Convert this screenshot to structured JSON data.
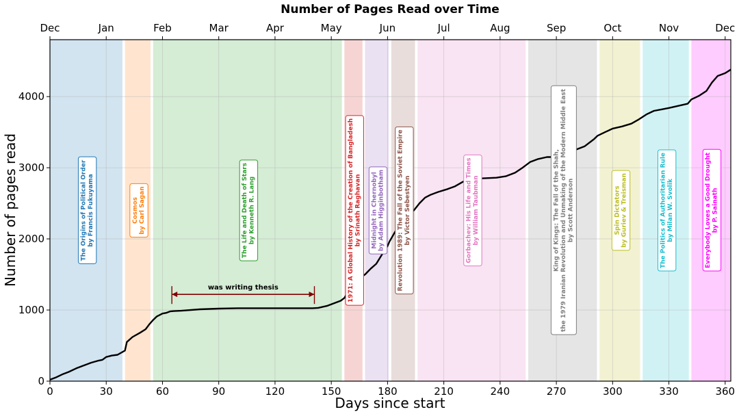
{
  "chart_data": {
    "type": "line",
    "title": "Number of Pages Read over Time",
    "xlabel": "Days since start",
    "ylabel": "Number of pages read",
    "xlim": [
      0,
      363
    ],
    "ylim": [
      0,
      4800
    ],
    "grid": true,
    "x_ticks": [
      0,
      30,
      60,
      90,
      120,
      150,
      180,
      210,
      240,
      270,
      300,
      330,
      360
    ],
    "y_ticks": [
      0,
      1000,
      2000,
      3000,
      4000
    ],
    "month_ticks": [
      {
        "day": 0,
        "label": "Dec"
      },
      {
        "day": 30,
        "label": "Jan"
      },
      {
        "day": 60,
        "label": "Feb"
      },
      {
        "day": 90,
        "label": "Mar"
      },
      {
        "day": 120,
        "label": "Apr"
      },
      {
        "day": 150,
        "label": "May"
      },
      {
        "day": 180,
        "label": "Jun"
      },
      {
        "day": 210,
        "label": "Jul"
      },
      {
        "day": 240,
        "label": "Aug"
      },
      {
        "day": 270,
        "label": "Sep"
      },
      {
        "day": 300,
        "label": "Oct"
      },
      {
        "day": 330,
        "label": "Nov"
      },
      {
        "day": 360,
        "label": "Dec"
      }
    ],
    "books": [
      {
        "start": 0,
        "end": 39,
        "color": "#1f77b4",
        "label": "The Origins of Political Order\nby Francis Fukuyama",
        "label_y": 2400
      },
      {
        "start": 40,
        "end": 54,
        "color": "#ff7f0e",
        "label": "Cosmos\nby Carl Sagan",
        "label_y": 2400
      },
      {
        "start": 55,
        "end": 156,
        "color": "#2ca02c",
        "label": "The Life and Death of Stars\nby Kenneth R. Lang",
        "label_y": 2400
      },
      {
        "start": 157,
        "end": 167,
        "color": "#d62728",
        "label": "1971: A Global History of the  Creation of Bangladesh\nby Srinath Raghavan",
        "label_y": 2400
      },
      {
        "start": 168,
        "end": 181,
        "color": "#9467bd",
        "label": "Midnight in Chernobyl\nby Adam Higginbotham",
        "label_y": 2400
      },
      {
        "start": 182,
        "end": 195,
        "color": "#8c564b",
        "label": "Revolution 1989: The Fall of the  Soviet Empire\nby Victor Sebestyen",
        "label_y": 2400
      },
      {
        "start": 196,
        "end": 254,
        "color": "#e377c2",
        "label": "Gorbachev: His Life and Times\nby William Taubman",
        "label_y": 2400
      },
      {
        "start": 255,
        "end": 292,
        "color": "#7f7f7f",
        "label": "King of Kings: The Fall of the Shah,\nthe 1979 Iranian Revolution and  Unmaking of the Modern Middle East\nby Scott Anderson",
        "label_y": 2400
      },
      {
        "start": 293,
        "end": 315,
        "color": "#bcbd22",
        "label": "Spin Dictators\nby Guriev & Treisman",
        "label_y": 2400
      },
      {
        "start": 316,
        "end": 341,
        "color": "#17becf",
        "label": "The Politics of Authoritarian Rule\nby Milan W. Svolik",
        "label_y": 2400
      },
      {
        "start": 342,
        "end": 363,
        "color": "#ff00ff",
        "label": "Everybody Loves a Good Drought\nby P. Sainath",
        "label_y": 2400
      }
    ],
    "annotation": {
      "text": "was writing thesis",
      "x_start": 65,
      "x_end": 141,
      "y": 1220,
      "color": "#800000"
    },
    "series": [
      {
        "color": "#000000",
        "x": [
          0,
          3,
          7,
          10,
          14,
          18,
          22,
          26,
          28,
          30,
          33,
          36,
          40,
          41,
          44,
          48,
          51,
          53,
          55,
          57,
          60,
          62,
          64,
          66,
          70,
          80,
          90,
          100,
          110,
          120,
          130,
          140,
          143,
          148,
          152,
          155,
          157,
          160,
          163,
          166,
          168,
          171,
          174,
          177,
          180,
          181,
          184,
          188,
          191,
          194,
          197,
          200,
          203,
          207,
          212,
          216,
          220,
          225,
          230,
          238,
          243,
          248,
          252,
          256,
          260,
          265,
          270,
          275,
          280,
          285,
          290,
          292,
          296,
          300,
          305,
          310,
          314,
          318,
          322,
          326,
          330,
          335,
          340,
          342,
          346,
          350,
          353,
          356,
          360,
          363
        ],
        "y": [
          20,
          50,
          100,
          130,
          180,
          220,
          260,
          290,
          300,
          340,
          360,
          370,
          430,
          550,
          620,
          680,
          730,
          800,
          860,
          910,
          950,
          960,
          980,
          985,
          990,
          1010,
          1020,
          1025,
          1025,
          1025,
          1025,
          1025,
          1030,
          1060,
          1100,
          1130,
          1170,
          1300,
          1400,
          1460,
          1500,
          1580,
          1650,
          1780,
          1900,
          1960,
          2100,
          2250,
          2350,
          2400,
          2500,
          2580,
          2620,
          2660,
          2700,
          2740,
          2800,
          2850,
          2850,
          2860,
          2880,
          2930,
          3000,
          3080,
          3120,
          3150,
          3150,
          3180,
          3250,
          3300,
          3400,
          3450,
          3500,
          3550,
          3580,
          3620,
          3680,
          3750,
          3800,
          3820,
          3840,
          3870,
          3900,
          3960,
          4010,
          4080,
          4200,
          4290,
          4330,
          4380
        ]
      }
    ]
  }
}
